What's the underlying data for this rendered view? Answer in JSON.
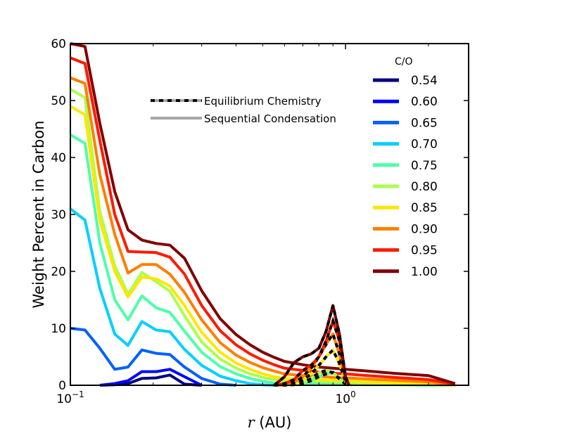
{
  "chart_data": {
    "type": "line",
    "xscale": "log",
    "xlim": [
      0.1,
      2.8
    ],
    "ylim": [
      0,
      60
    ],
    "xlabel_var": "r",
    "xlabel_unit": " (AU)",
    "ylabel": "Weight Percent in Carbon",
    "y_ticks": [
      0,
      10,
      20,
      30,
      40,
      50,
      60
    ],
    "x_ticks": [
      {
        "value": 0.1,
        "base": "10",
        "exp": "−1"
      },
      {
        "value": 1.0,
        "base": "10",
        "exp": "0"
      }
    ],
    "legend_title": "C/O",
    "style_legend": {
      "equilibrium_label": "Equilibrium Chemistry",
      "sequential_label": "Sequential Condensation"
    },
    "x": [
      0.1,
      0.113,
      0.128,
      0.145,
      0.162,
      0.182,
      0.205,
      0.23,
      0.26,
      0.3,
      0.35,
      0.4,
      0.45,
      0.5,
      0.55,
      0.6,
      0.7,
      0.8,
      0.9,
      1.0,
      1.2,
      1.5,
      2.0,
      2.5
    ],
    "series": [
      {
        "name": "0.54",
        "color": "#000080",
        "values": [
          null,
          null,
          0.0,
          0.1,
          0.3,
          1.2,
          1.3,
          1.8,
          0.2,
          0.0,
          null,
          null,
          null,
          null,
          null,
          null,
          null,
          null,
          null,
          null,
          null,
          null,
          null,
          null
        ]
      },
      {
        "name": "0.60",
        "color": "#0000ff",
        "values": [
          null,
          null,
          0.0,
          0.3,
          0.8,
          2.4,
          2.4,
          2.8,
          1.5,
          0.0,
          null,
          null,
          null,
          null,
          null,
          null,
          null,
          null,
          null,
          null,
          null,
          null,
          null,
          null
        ]
      },
      {
        "name": "0.65",
        "color": "#0060ff",
        "values": [
          10.0,
          9.7,
          6.5,
          2.8,
          3.2,
          6.2,
          5.6,
          5.4,
          3.2,
          1.2,
          0.2,
          0.0,
          null,
          null,
          null,
          null,
          null,
          null,
          null,
          null,
          null,
          null,
          null,
          null
        ]
      },
      {
        "name": "0.70",
        "color": "#00d0ff",
        "values": [
          31.0,
          29.0,
          17.0,
          9.0,
          7.0,
          11.2,
          9.7,
          9.4,
          6.3,
          3.5,
          1.6,
          0.8,
          0.3,
          0.1,
          0.0,
          null,
          null,
          null,
          null,
          null,
          null,
          null,
          null,
          null
        ]
      },
      {
        "name": "0.75",
        "color": "#4dffaa",
        "values": [
          44.0,
          42.5,
          25.0,
          15.0,
          11.5,
          15.7,
          13.6,
          12.8,
          9.5,
          5.8,
          3.3,
          2.0,
          1.2,
          0.7,
          0.4,
          0.2,
          0.3,
          0.4,
          0.3,
          0.2,
          0.1,
          0.1,
          0.0,
          0.0
        ]
      },
      {
        "name": "0.80",
        "color": "#aaff4d",
        "values": [
          52.0,
          50.5,
          30.5,
          21.0,
          16.0,
          19.8,
          18.2,
          16.5,
          12.2,
          7.6,
          4.6,
          3.0,
          2.0,
          1.4,
          1.0,
          0.7,
          0.6,
          0.7,
          0.6,
          0.5,
          0.3,
          0.2,
          0.1,
          0.0
        ]
      },
      {
        "name": "0.85",
        "color": "#ffe600",
        "values": [
          49.0,
          47.5,
          29.0,
          20.0,
          15.5,
          19.0,
          18.7,
          17.4,
          14.0,
          9.3,
          5.8,
          3.9,
          2.8,
          2.0,
          1.5,
          1.2,
          1.0,
          1.0,
          0.9,
          0.8,
          0.6,
          0.5,
          0.3,
          0.0
        ]
      },
      {
        "name": "0.90",
        "color": "#ff7f00",
        "values": [
          54.0,
          53.0,
          37.0,
          26.5,
          19.7,
          21.2,
          21.2,
          19.5,
          16.3,
          11.5,
          7.5,
          5.3,
          4.0,
          3.1,
          2.5,
          2.0,
          1.7,
          1.6,
          1.4,
          1.3,
          1.1,
          0.9,
          0.6,
          0.1
        ]
      },
      {
        "name": "0.95",
        "color": "#ff1a00",
        "values": [
          57.5,
          56.5,
          43.0,
          30.0,
          23.5,
          23.4,
          23.3,
          22.5,
          19.5,
          14.0,
          9.6,
          7.1,
          5.5,
          4.4,
          3.6,
          3.0,
          2.6,
          2.3,
          2.1,
          2.0,
          1.7,
          1.4,
          1.0,
          0.2
        ]
      },
      {
        "name": "1.00",
        "color": "#800000",
        "values": [
          60.0,
          59.5,
          46.0,
          34.0,
          27.3,
          25.5,
          24.9,
          24.6,
          22.3,
          16.6,
          11.7,
          8.9,
          7.1,
          5.8,
          4.9,
          4.2,
          3.6,
          3.2,
          3.0,
          2.8,
          2.5,
          2.1,
          1.7,
          0.3
        ]
      }
    ],
    "equilibrium_x": [
      0.55,
      0.6,
      0.65,
      0.7,
      0.75,
      0.8,
      0.85,
      0.9,
      0.95,
      1.0,
      1.03
    ],
    "equilibrium_series": [
      {
        "name": "0.75",
        "color": "#4dffaa",
        "values": [
          0.0,
          0.0,
          0.1,
          0.3,
          0.8,
          1.5,
          2.0,
          2.3,
          1.2,
          0.2,
          0.0
        ]
      },
      {
        "name": "0.80",
        "color": "#aaff4d",
        "values": [
          0.0,
          0.0,
          0.2,
          0.5,
          1.2,
          2.2,
          2.6,
          2.2,
          1.1,
          0.2,
          0.0
        ]
      },
      {
        "name": "0.85",
        "color": "#ffe600",
        "values": [
          0.0,
          0.1,
          0.3,
          0.9,
          2.0,
          3.5,
          5.0,
          6.2,
          3.8,
          0.6,
          0.0
        ]
      },
      {
        "name": "0.90",
        "color": "#ff7f00",
        "values": [
          0.0,
          0.1,
          0.5,
          1.5,
          3.0,
          5.0,
          7.2,
          9.0,
          5.5,
          0.8,
          0.0
        ]
      },
      {
        "name": "0.95",
        "color": "#ff1a00",
        "values": [
          0.0,
          0.3,
          1.0,
          2.6,
          3.5,
          5.0,
          7.8,
          11.3,
          7.8,
          1.2,
          0.0
        ]
      },
      {
        "name": "1.00",
        "color": "#800000",
        "values": [
          0.0,
          1.5,
          4.0,
          5.0,
          5.5,
          6.5,
          9.5,
          14.0,
          9.0,
          1.5,
          0.0
        ]
      }
    ]
  }
}
